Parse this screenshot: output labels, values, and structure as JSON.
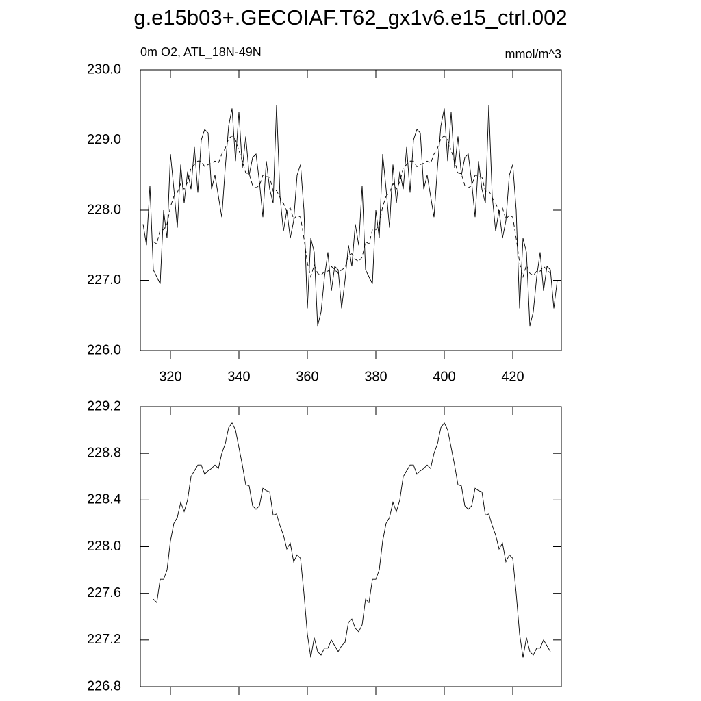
{
  "chart_data": [
    {
      "type": "line",
      "title": "g.e15b03+.GECOIAF.T62_gx1v6.e15_ctrl.002",
      "subtitle": "0m O2, ATL_18N-49N",
      "units": "mmol/m^3",
      "x": [
        312,
        313,
        314,
        315,
        316,
        317,
        318,
        319,
        320,
        321,
        322,
        323,
        324,
        325,
        326,
        327,
        328,
        329,
        330,
        331,
        332,
        333,
        334,
        335,
        336,
        337,
        338,
        339,
        340,
        341,
        342,
        343,
        344,
        345,
        346,
        347,
        348,
        349,
        350,
        351,
        352,
        353,
        354,
        355,
        356,
        357,
        358,
        359,
        360,
        361,
        362,
        363,
        364,
        365,
        366,
        367,
        368,
        369,
        370,
        371,
        372,
        373,
        374,
        375,
        376,
        377,
        378,
        379,
        380,
        381,
        382,
        383,
        384,
        385,
        386,
        387,
        388,
        389,
        390,
        391,
        392,
        393,
        394,
        395,
        396,
        397,
        398,
        399,
        400,
        401,
        402,
        403,
        404,
        405,
        406,
        407,
        408,
        409,
        410,
        411,
        412,
        413,
        414,
        415,
        416,
        417,
        418,
        419,
        420,
        421,
        422,
        423,
        424,
        425,
        426,
        427,
        428,
        429,
        430,
        431,
        432,
        433
      ],
      "series": [
        {
          "color": "#000000",
          "dash": false,
          "values": [
            227.8,
            227.5,
            228.35,
            227.15,
            227.05,
            226.95,
            228.0,
            227.6,
            228.8,
            228.3,
            227.75,
            228.65,
            228.1,
            228.55,
            228.3,
            228.9,
            228.25,
            229.0,
            229.15,
            229.1,
            228.3,
            228.5,
            228.2,
            227.9,
            228.6,
            229.2,
            229.45,
            228.7,
            229.4,
            228.6,
            229.05,
            228.5,
            228.75,
            228.8,
            228.4,
            227.9,
            228.7,
            228.3,
            228.1,
            229.5,
            228.2,
            227.7,
            228.0,
            227.6,
            227.85,
            228.5,
            228.65,
            228.0,
            226.6,
            227.6,
            227.4,
            226.35,
            226.55,
            227.05,
            227.4,
            226.85,
            227.2,
            227.15,
            226.6,
            227.0,
            227.5,
            227.2,
            227.8,
            227.5,
            228.35,
            227.15,
            227.05,
            226.95,
            228.0,
            227.6,
            228.8,
            228.3,
            227.75,
            228.65,
            228.1,
            228.55,
            228.3,
            228.9,
            228.25,
            229.0,
            229.15,
            229.1,
            228.3,
            228.5,
            228.2,
            227.9,
            228.6,
            229.2,
            229.45,
            228.7,
            229.4,
            228.6,
            229.05,
            228.5,
            228.75,
            228.8,
            228.4,
            227.9,
            228.7,
            228.3,
            228.1,
            229.5,
            228.2,
            227.7,
            228.0,
            227.6,
            227.85,
            228.5,
            228.65,
            228.0,
            226.6,
            227.6,
            227.4,
            226.35,
            226.55,
            227.05,
            227.4,
            226.85,
            227.2,
            227.15,
            226.6,
            227.0
          ]
        },
        {
          "color": "#000000",
          "dash": true,
          "values": [
            null,
            null,
            null,
            227.55,
            227.52,
            227.72,
            227.72,
            227.8,
            228.05,
            228.2,
            228.25,
            228.38,
            228.3,
            228.4,
            228.6,
            228.65,
            228.7,
            228.7,
            228.62,
            228.65,
            228.67,
            228.7,
            228.67,
            228.8,
            228.88,
            229.02,
            229.06,
            229.0,
            228.85,
            228.7,
            228.53,
            228.52,
            228.35,
            228.32,
            228.35,
            228.5,
            228.48,
            228.47,
            228.27,
            228.28,
            228.18,
            228.1,
            227.98,
            228.03,
            227.87,
            227.93,
            227.9,
            227.6,
            227.25,
            227.05,
            227.22,
            227.1,
            227.07,
            227.13,
            227.13,
            227.2,
            227.15,
            227.1,
            227.15,
            227.18,
            227.35,
            227.38,
            227.3,
            227.27,
            227.33,
            227.55,
            227.52,
            227.72,
            227.72,
            227.8,
            228.05,
            228.2,
            228.25,
            228.38,
            228.3,
            228.4,
            228.6,
            228.65,
            228.7,
            228.7,
            228.62,
            228.65,
            228.67,
            228.7,
            228.67,
            228.8,
            228.88,
            229.02,
            229.06,
            229.0,
            228.85,
            228.7,
            228.53,
            228.52,
            228.35,
            228.32,
            228.35,
            228.5,
            228.48,
            228.47,
            228.27,
            228.28,
            228.18,
            228.1,
            227.98,
            228.03,
            227.87,
            227.93,
            227.9,
            227.6,
            227.25,
            227.05,
            227.22,
            227.1,
            227.07,
            227.13,
            227.13,
            227.2,
            227.15,
            227.1,
            null,
            null
          ]
        }
      ],
      "xlim": [
        311.2,
        434.2
      ],
      "xticks": [
        320,
        340,
        360,
        380,
        400,
        420
      ],
      "xticklabels": true,
      "ylim": [
        226,
        230
      ],
      "yticks": [
        {
          "value": 226,
          "label": "226.0"
        },
        {
          "value": 227,
          "label": "227.0"
        },
        {
          "value": 228,
          "label": "228.0"
        },
        {
          "value": 229,
          "label": "229.0"
        },
        {
          "value": 230,
          "label": "230.0"
        }
      ]
    },
    {
      "type": "line",
      "x": [
        312,
        313,
        314,
        315,
        316,
        317,
        318,
        319,
        320,
        321,
        322,
        323,
        324,
        325,
        326,
        327,
        328,
        329,
        330,
        331,
        332,
        333,
        334,
        335,
        336,
        337,
        338,
        339,
        340,
        341,
        342,
        343,
        344,
        345,
        346,
        347,
        348,
        349,
        350,
        351,
        352,
        353,
        354,
        355,
        356,
        357,
        358,
        359,
        360,
        361,
        362,
        363,
        364,
        365,
        366,
        367,
        368,
        369,
        370,
        371,
        372,
        373,
        374,
        375,
        376,
        377,
        378,
        379,
        380,
        381,
        382,
        383,
        384,
        385,
        386,
        387,
        388,
        389,
        390,
        391,
        392,
        393,
        394,
        395,
        396,
        397,
        398,
        399,
        400,
        401,
        402,
        403,
        404,
        405,
        406,
        407,
        408,
        409,
        410,
        411,
        412,
        413,
        414,
        415,
        416,
        417,
        418,
        419,
        420,
        421,
        422,
        423,
        424,
        425,
        426,
        427,
        428,
        429,
        430,
        431,
        432,
        433
      ],
      "series": [
        {
          "color": "#000000",
          "dash": false,
          "values": [
            null,
            null,
            null,
            227.55,
            227.52,
            227.72,
            227.72,
            227.8,
            228.05,
            228.2,
            228.25,
            228.38,
            228.3,
            228.4,
            228.6,
            228.65,
            228.7,
            228.7,
            228.62,
            228.65,
            228.67,
            228.7,
            228.67,
            228.8,
            228.88,
            229.02,
            229.06,
            229.0,
            228.85,
            228.7,
            228.53,
            228.52,
            228.35,
            228.32,
            228.35,
            228.5,
            228.48,
            228.47,
            228.27,
            228.28,
            228.18,
            228.1,
            227.98,
            228.03,
            227.87,
            227.93,
            227.9,
            227.6,
            227.25,
            227.05,
            227.22,
            227.1,
            227.07,
            227.13,
            227.13,
            227.2,
            227.15,
            227.1,
            227.15,
            227.18,
            227.35,
            227.38,
            227.3,
            227.27,
            227.33,
            227.55,
            227.52,
            227.72,
            227.72,
            227.8,
            228.05,
            228.2,
            228.25,
            228.38,
            228.3,
            228.4,
            228.6,
            228.65,
            228.7,
            228.7,
            228.62,
            228.65,
            228.67,
            228.7,
            228.67,
            228.8,
            228.88,
            229.02,
            229.06,
            229.0,
            228.85,
            228.7,
            228.53,
            228.52,
            228.35,
            228.32,
            228.35,
            228.5,
            228.48,
            228.47,
            228.27,
            228.28,
            228.18,
            228.1,
            227.98,
            228.03,
            227.87,
            227.93,
            227.9,
            227.6,
            227.25,
            227.05,
            227.22,
            227.1,
            227.07,
            227.13,
            227.13,
            227.2,
            227.15,
            227.1,
            null,
            null
          ]
        }
      ],
      "xlim": [
        311.2,
        434.2
      ],
      "xticks": [
        320,
        340,
        360,
        380,
        400,
        420
      ],
      "xticklabels": false,
      "ylim": [
        226.8,
        229.2
      ],
      "yticks": [
        {
          "value": 226.8,
          "label": "226.8"
        },
        {
          "value": 227.2,
          "label": "227.2"
        },
        {
          "value": 227.6,
          "label": "227.6"
        },
        {
          "value": 228,
          "label": "228.0"
        },
        {
          "value": 228.4,
          "label": "228.4"
        },
        {
          "value": 228.8,
          "label": "228.8"
        },
        {
          "value": 229.2,
          "label": "229.2"
        }
      ]
    }
  ]
}
